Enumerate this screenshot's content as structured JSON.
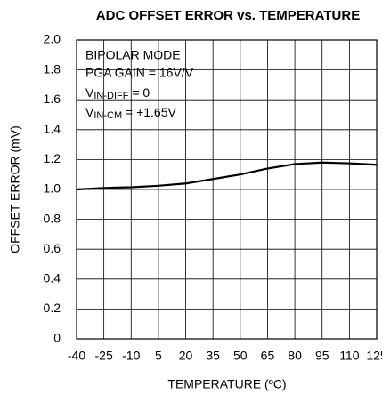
{
  "chart_data": {
    "type": "line",
    "title": "ADC OFFSET ERROR vs. TEMPERATURE",
    "xlabel": "TEMPERATURE (ºC)",
    "ylabel": "OFFSET ERROR (mV)",
    "annotations": {
      "mode": "BIPOLAR MODE",
      "gain": "PGA GAIN = 16V/V",
      "vdiff": [
        "V",
        "IN-DIFF",
        " = 0"
      ],
      "vcm": [
        "V",
        "IN-CM",
        " = +1.65V"
      ]
    },
    "x": [
      -40,
      -25,
      -10,
      5,
      20,
      35,
      50,
      65,
      80,
      95,
      110,
      125
    ],
    "series": [
      {
        "color": "#000000",
        "values": [
          1.0,
          1.01,
          1.015,
          1.025,
          1.04,
          1.07,
          1.1,
          1.14,
          1.17,
          1.18,
          1.175,
          1.165
        ]
      }
    ],
    "xlim": [
      -40,
      125
    ],
    "xticks": [
      -40,
      -25,
      -10,
      5,
      20,
      35,
      50,
      65,
      80,
      95,
      110,
      125
    ],
    "ylim": [
      0,
      2
    ],
    "yticks": [
      0,
      0.2,
      0.4,
      0.6,
      0.8,
      {
        "value": 1,
        "label": "1.0"
      },
      1.2,
      1.4,
      1.6,
      1.8,
      {
        "value": 2,
        "label": "2.0"
      }
    ],
    "grid": true
  }
}
